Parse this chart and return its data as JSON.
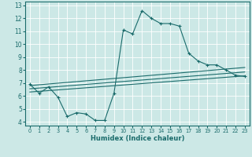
{
  "xlabel": "Humidex (Indice chaleur)",
  "bg_color": "#cce8e6",
  "line_color": "#1a6b6b",
  "grid_color": "#ffffff",
  "xlim": [
    -0.5,
    23.5
  ],
  "ylim": [
    3.7,
    13.3
  ],
  "xticks": [
    0,
    1,
    2,
    3,
    4,
    5,
    6,
    7,
    8,
    9,
    10,
    11,
    12,
    13,
    14,
    15,
    16,
    17,
    18,
    19,
    20,
    21,
    22,
    23
  ],
  "yticks": [
    4,
    5,
    6,
    7,
    8,
    9,
    10,
    11,
    12,
    13
  ],
  "curve1_x": [
    0,
    1,
    2,
    3,
    4,
    5,
    6,
    7,
    8,
    9,
    10,
    11,
    12,
    13,
    14,
    15,
    16,
    17,
    18,
    19,
    20,
    21,
    22,
    23
  ],
  "curve1_y": [
    6.9,
    6.2,
    6.7,
    5.9,
    4.4,
    4.7,
    4.6,
    4.1,
    4.1,
    6.2,
    11.1,
    10.8,
    12.6,
    12.0,
    11.6,
    11.6,
    11.4,
    9.3,
    8.7,
    8.4,
    8.4,
    8.0,
    7.6,
    7.5
  ],
  "curve2_x": [
    0,
    23
  ],
  "curve2_y": [
    6.8,
    8.2
  ],
  "curve3_x": [
    0,
    23
  ],
  "curve3_y": [
    6.55,
    7.85
  ],
  "curve4_x": [
    0,
    23
  ],
  "curve4_y": [
    6.3,
    7.55
  ]
}
